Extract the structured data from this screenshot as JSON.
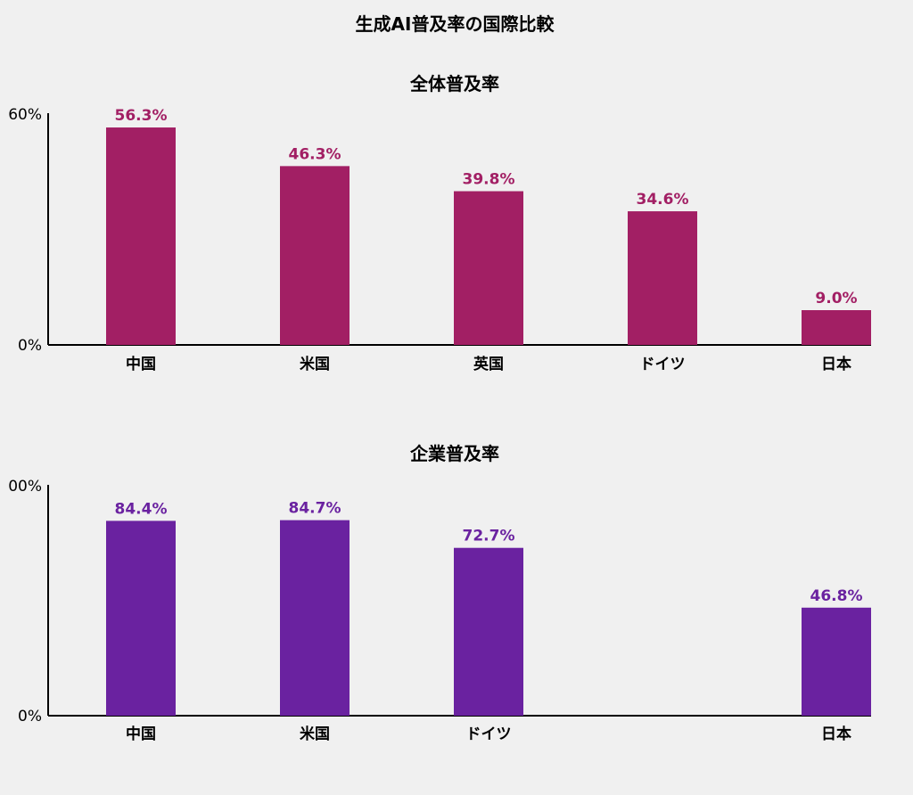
{
  "title": "生成AI普及率の国際比較",
  "chart_data": [
    {
      "type": "bar",
      "title": "全体普及率",
      "categories": [
        "中国",
        "米国",
        "英国",
        "ドイツ",
        "日本"
      ],
      "values": [
        56.3,
        46.3,
        39.8,
        34.6,
        9.0
      ],
      "value_labels": [
        "56.3%",
        "46.3%",
        "39.8%",
        "34.6%",
        "9.0%"
      ],
      "ylim": [
        0,
        60
      ],
      "ytick_labels": [
        "0%",
        "60%"
      ],
      "color": "#a21f64",
      "xlabel": "",
      "ylabel": "",
      "grid": false
    },
    {
      "type": "bar",
      "title": "企業普及率",
      "categories": [
        "中国",
        "米国",
        "ドイツ",
        "",
        "日本"
      ],
      "values": [
        84.4,
        84.7,
        72.7,
        null,
        46.8
      ],
      "value_labels": [
        "84.4%",
        "84.7%",
        "72.7%",
        "",
        "46.8%"
      ],
      "ylim": [
        0,
        100
      ],
      "ytick_labels": [
        "0%",
        "00%"
      ],
      "color": "#6a22a0",
      "xlabel": "",
      "ylabel": "",
      "grid": false
    }
  ]
}
